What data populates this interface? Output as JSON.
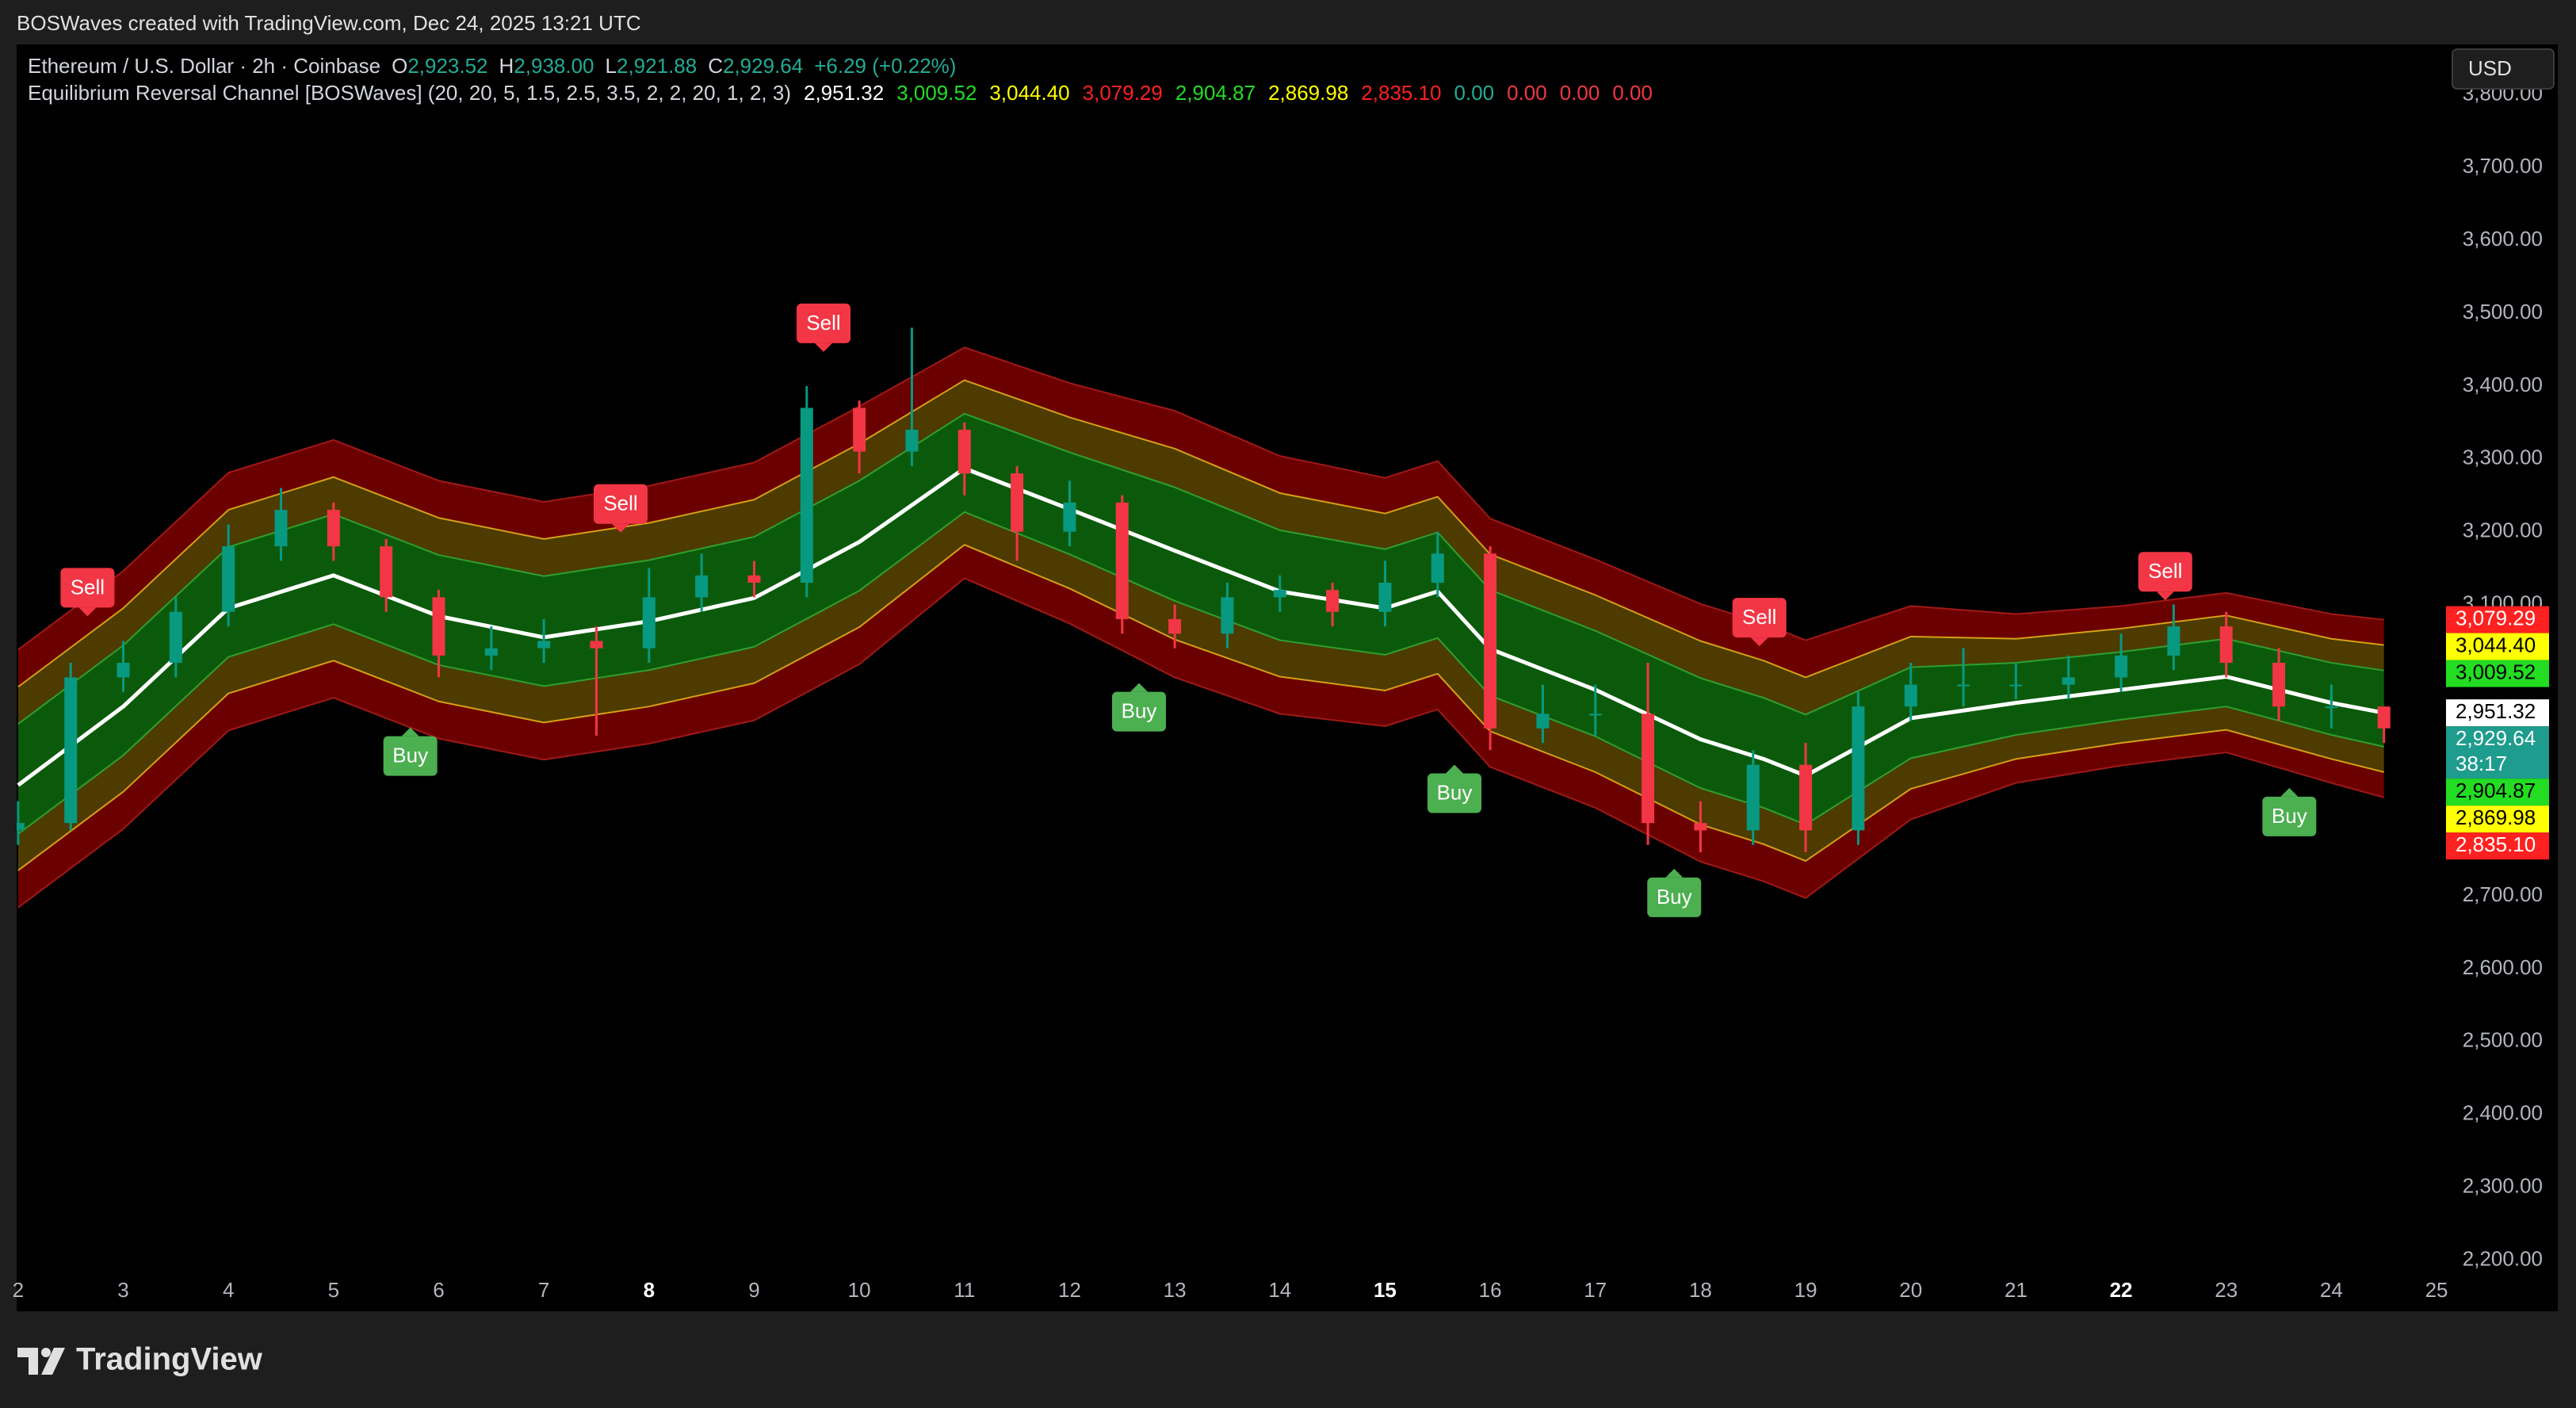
{
  "header": {
    "text": "BOSWaves created with TradingView.com, Dec 24, 2025 13:21 UTC"
  },
  "brand": "TradingView",
  "chart_data": {
    "type": "candlestick",
    "symbol": "Ethereum / U.S. Dollar · 2h · Coinbase",
    "ohlc_color": "#22ab94",
    "ohlc": [
      {
        "key": "O",
        "value": 2923.52,
        "label": "2,923.52"
      },
      {
        "key": "H",
        "value": 2938.0,
        "label": "2,938.00"
      },
      {
        "key": "L",
        "value": 2921.88,
        "label": "2,921.88"
      },
      {
        "key": "C",
        "value": 2929.64,
        "label": "2,929.64"
      }
    ],
    "change": "+6.29 (+0.22%)",
    "indicator": "Equilibrium Reversal Channel [BOSWaves] (20, 20, 5, 1.5, 2.5, 3.5, 2, 2, 20, 1, 2, 3)",
    "indicator_values": [
      {
        "value": 2951.32,
        "label": "2,951.32",
        "color": "#ffffff"
      },
      {
        "value": 3009.52,
        "label": "3,009.52",
        "color": "#22dd22"
      },
      {
        "value": 3044.4,
        "label": "3,044.40",
        "color": "#ffff00"
      },
      {
        "value": 3079.29,
        "label": "3,079.29",
        "color": "#ff2020"
      },
      {
        "value": 2904.87,
        "label": "2,904.87",
        "color": "#22dd22"
      },
      {
        "value": 2869.98,
        "label": "2,869.98",
        "color": "#ffff00"
      },
      {
        "value": 2835.1,
        "label": "2,835.10",
        "color": "#ff2020"
      },
      {
        "value": 0.0,
        "label": "0.00",
        "color": "#22ab94"
      },
      {
        "value": 0.0,
        "label": "0.00",
        "color": "#f23645"
      },
      {
        "value": 0.0,
        "label": "0.00",
        "color": "#f23645"
      },
      {
        "value": 0.0,
        "label": "0.00",
        "color": "#f23645"
      }
    ],
    "currency": "USD",
    "last_price": {
      "value": 2929.64,
      "label": "2,929.64",
      "countdown": "38:17",
      "color": "#1e9c8e"
    },
    "xlim": [
      1.986,
      25.075
    ],
    "xticks": [
      2,
      3,
      4,
      5,
      6,
      7,
      8,
      9,
      10,
      11,
      12,
      13,
      14,
      15,
      16,
      17,
      18,
      19,
      20,
      21,
      22,
      23,
      24,
      25
    ],
    "bold_xticks": [
      8,
      15,
      22
    ],
    "ylim": [
      2182,
      3869
    ],
    "yticks": [
      {
        "value": 2200,
        "label": "2,200.00"
      },
      {
        "value": 2300,
        "label": "2,300.00"
      },
      {
        "value": 2400,
        "label": "2,400.00"
      },
      {
        "value": 2500,
        "label": "2,500.00"
      },
      {
        "value": 2600,
        "label": "2,600.00"
      },
      {
        "value": 2700,
        "label": "2,700.00"
      },
      {
        "value": 2800,
        "label": "2,800.00"
      },
      {
        "value": 2900,
        "label": "2,900.00"
      },
      {
        "value": 3000,
        "label": "3,000.00"
      },
      {
        "value": 3100,
        "label": "3,100.00"
      },
      {
        "value": 3200,
        "label": "3,200.00"
      },
      {
        "value": 3300,
        "label": "3,300.00"
      },
      {
        "value": 3400,
        "label": "3,400.00"
      },
      {
        "value": 3500,
        "label": "3,500.00"
      },
      {
        "value": 3600,
        "label": "3,600.00"
      },
      {
        "value": 3700,
        "label": "3,700.00"
      },
      {
        "value": 3800,
        "label": "3,800.00"
      }
    ],
    "grid": false,
    "candles": {
      "up_color": "#089981",
      "down_color": "#f23645",
      "x": [
        2,
        2.5,
        3,
        3.5,
        4,
        4.5,
        5,
        5.5,
        6,
        6.5,
        7,
        7.5,
        8,
        8.5,
        9,
        9.5,
        10,
        10.5,
        11,
        11.5,
        12,
        12.5,
        13,
        13.5,
        14,
        14.5,
        15,
        15.5,
        16,
        16.5,
        17,
        17.5,
        18,
        18.5,
        19,
        19.5,
        20,
        20.5,
        21,
        21.5,
        22,
        22.5,
        23,
        23.5,
        24,
        24.5
      ],
      "open": [
        2790,
        2800,
        3000,
        3020,
        3090,
        3180,
        3230,
        3180,
        3110,
        3030,
        3040,
        3050,
        3040,
        3110,
        3140,
        3130,
        3370,
        3310,
        3340,
        3280,
        3200,
        3240,
        3080,
        3060,
        3110,
        3120,
        3090,
        3130,
        3170,
        2930,
        2950,
        2950,
        2800,
        2790,
        2880,
        2790,
        2960,
        2990,
        2990,
        2990,
        3000,
        3030,
        3070,
        3020,
        2960,
        2960
      ],
      "high": [
        2830,
        3020,
        3050,
        3110,
        3210,
        3260,
        3240,
        3190,
        3120,
        3070,
        3080,
        3070,
        3150,
        3170,
        3160,
        3400,
        3380,
        3480,
        3350,
        3290,
        3270,
        3250,
        3100,
        3130,
        3140,
        3130,
        3160,
        3200,
        3180,
        2990,
        2990,
        3020,
        2830,
        2900,
        2910,
        2980,
        3020,
        3040,
        3020,
        3030,
        3060,
        3100,
        3090,
        3040,
        2990,
        2960
      ],
      "low": [
        2770,
        2790,
        2980,
        3000,
        3070,
        3160,
        3160,
        3090,
        3000,
        3010,
        3020,
        2920,
        3020,
        3090,
        3110,
        3110,
        3280,
        3290,
        3250,
        3160,
        3180,
        3060,
        3040,
        3040,
        3090,
        3070,
        3070,
        3110,
        2900,
        2910,
        2920,
        2770,
        2760,
        2770,
        2760,
        2770,
        2940,
        2960,
        2970,
        2970,
        2980,
        3010,
        3000,
        2940,
        2930,
        2910
      ],
      "close": [
        2800,
        3000,
        3020,
        3090,
        3180,
        3230,
        3180,
        3110,
        3030,
        3040,
        3050,
        3040,
        3110,
        3140,
        3130,
        3370,
        3310,
        3340,
        3280,
        3200,
        3240,
        3080,
        3060,
        3110,
        3120,
        3090,
        3130,
        3170,
        2930,
        2950,
        2950,
        2800,
        2790,
        2880,
        2790,
        2960,
        2990,
        2990,
        2990,
        3000,
        3030,
        3070,
        3020,
        2960,
        2960,
        2930
      ]
    },
    "bands": {
      "x": [
        2,
        3,
        4,
        5,
        6,
        7,
        8,
        9,
        10,
        11,
        12,
        13,
        14,
        15,
        15.5,
        16,
        17,
        18,
        18.6,
        19,
        20,
        21,
        22,
        23,
        24,
        24.5
      ],
      "fills": [
        "#6b0000",
        "#4d3b00",
        "#0b5a0b",
        "#0b5a0b",
        "#4d3b00",
        "#6b0000"
      ],
      "series": [
        {
          "color": "#a01818",
          "width": 2,
          "values": [
            3038,
            3146,
            3281,
            3326,
            3270,
            3241,
            3263,
            3295,
            3372,
            3453,
            3404,
            3366,
            3304,
            3274,
            3297,
            3218,
            3162,
            3101,
            3074,
            3051,
            3098,
            3087,
            3098,
            3116,
            3087,
            3079.29
          ]
        },
        {
          "color": "#d4a017",
          "width": 2,
          "values": [
            2987,
            3095,
            3230,
            3275,
            3219,
            3190,
            3212,
            3244,
            3321,
            3408,
            3357,
            3314,
            3253,
            3225,
            3248,
            3169,
            3113,
            3050,
            3023,
            3000,
            3056,
            3053,
            3067,
            3085,
            3053,
            3044.4
          ]
        },
        {
          "color": "#2ea02e",
          "width": 2,
          "values": [
            2936,
            3044,
            3179,
            3224,
            3168,
            3139,
            3161,
            3193,
            3270,
            3362,
            3309,
            3261,
            3202,
            3176,
            3199,
            3120,
            3064,
            2999,
            2972,
            2949,
            3014,
            3020,
            3035,
            3053,
            3020,
            3009.52
          ]
        },
        {
          "color": "#ffffff",
          "width": 5,
          "values": [
            2852,
            2960,
            3095,
            3140,
            3084,
            3055,
            3077,
            3109,
            3186,
            3287,
            3231,
            3174,
            3118,
            3095,
            3118,
            3039,
            2983,
            2915,
            2888,
            2865,
            2944,
            2965,
            2983,
            3001,
            2965,
            2951.32
          ]
        },
        {
          "color": "#2ea02e",
          "width": 2,
          "values": [
            2785,
            2893,
            3028,
            3073,
            3017,
            2988,
            3010,
            3042,
            3119,
            3227,
            3169,
            3105,
            3051,
            3031,
            3054,
            2975,
            2919,
            2848,
            2821,
            2798,
            2889,
            2921,
            2942,
            2960,
            2921,
            2904.87
          ]
        },
        {
          "color": "#d4a017",
          "width": 2,
          "values": [
            2735,
            2843,
            2978,
            3023,
            2967,
            2938,
            2960,
            2992,
            3069,
            3182,
            3122,
            3052,
            3001,
            2982,
            3005,
            2926,
            2870,
            2798,
            2771,
            2748,
            2847,
            2888,
            2910,
            2928,
            2888,
            2869.98
          ]
        },
        {
          "color": "#a01818",
          "width": 2,
          "values": [
            2684,
            2792,
            2927,
            2972,
            2916,
            2887,
            2909,
            2941,
            3018,
            3136,
            3074,
            3000,
            2950,
            2933,
            2956,
            2877,
            2821,
            2747,
            2720,
            2697,
            2805,
            2855,
            2879,
            2897,
            2855,
            2835.1
          ]
        }
      ]
    },
    "signals": [
      {
        "label": "Sell",
        "x": 2.66,
        "y": 3123,
        "color": "#f23645"
      },
      {
        "label": "Buy",
        "x": 5.73,
        "y": 2892,
        "color": "#4caf50"
      },
      {
        "label": "Sell",
        "x": 7.73,
        "y": 3238,
        "color": "#f23645"
      },
      {
        "label": "Sell",
        "x": 9.66,
        "y": 3486,
        "color": "#f23645"
      },
      {
        "label": "Buy",
        "x": 12.66,
        "y": 2953,
        "color": "#4caf50"
      },
      {
        "label": "Buy",
        "x": 15.66,
        "y": 2841,
        "color": "#4caf50"
      },
      {
        "label": "Buy",
        "x": 17.75,
        "y": 2698,
        "color": "#4caf50"
      },
      {
        "label": "Sell",
        "x": 18.56,
        "y": 3082,
        "color": "#f23645"
      },
      {
        "label": "Sell",
        "x": 22.42,
        "y": 3145,
        "color": "#f23645"
      },
      {
        "label": "Buy",
        "x": 23.6,
        "y": 2809,
        "color": "#4caf50"
      }
    ]
  }
}
